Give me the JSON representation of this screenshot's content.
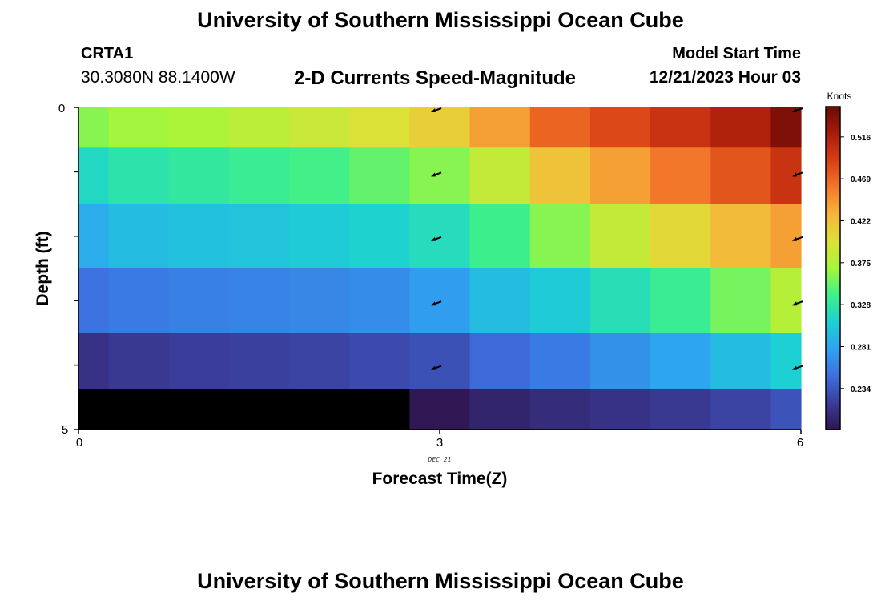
{
  "header": {
    "title": "University of Southern Mississippi Ocean Cube",
    "station": "CRTA1",
    "coords": "30.3080N  88.1400W",
    "subtitle": "2-D Currents Speed-Magnitude",
    "model_label": "Model Start Time",
    "model_time": "12/21/2023 Hour 03"
  },
  "footer": {
    "title": "University of Southern Mississippi Ocean Cube"
  },
  "colors": {
    "ramp": [
      "#2f1550",
      "#3a3d9a",
      "#3e6fe0",
      "#2ea3f0",
      "#1cd1d2",
      "#3ef08a",
      "#a6f63a",
      "#dde037",
      "#f6b63a",
      "#f3782a",
      "#d83f14",
      "#a81c0b",
      "#6a0a06"
    ]
  },
  "chart_data": {
    "type": "heatmap",
    "title": "2-D Currents Speed-Magnitude",
    "xlabel": "Forecast Time(Z)",
    "ylabel": "Depth (ft)",
    "xlim": [
      0,
      6
    ],
    "ylim": [
      0,
      5
    ],
    "x_ticks": [
      "0",
      "3",
      "6"
    ],
    "y_ticks": [
      "0",
      "5"
    ],
    "date_annotation": "DEC 21",
    "colorbar": {
      "label": "Knots",
      "ticks": [
        "0.516",
        "0.469",
        "0.422",
        "0.375",
        "0.328",
        "0.281",
        "0.234"
      ],
      "tick_values": [
        0.516,
        0.469,
        0.422,
        0.375,
        0.328,
        0.281,
        0.234
      ],
      "range": [
        0.188,
        0.55
      ]
    },
    "x": [
      0,
      0.5,
      1,
      1.5,
      2,
      2.5,
      3,
      3.5,
      4,
      4.5,
      5,
      5.5,
      6
    ],
    "depth_rows": [
      0.25,
      1,
      2,
      3,
      4,
      4.75
    ],
    "values": [
      [
        0.36,
        0.368,
        0.372,
        0.38,
        0.388,
        0.398,
        0.412,
        0.44,
        0.47,
        0.485,
        0.5,
        0.515,
        0.54
      ],
      [
        0.315,
        0.325,
        0.33,
        0.335,
        0.34,
        0.35,
        0.36,
        0.385,
        0.42,
        0.44,
        0.46,
        0.478,
        0.5
      ],
      [
        0.285,
        0.295,
        0.298,
        0.3,
        0.305,
        0.31,
        0.318,
        0.338,
        0.36,
        0.385,
        0.405,
        0.425,
        0.44
      ],
      [
        0.25,
        0.255,
        0.258,
        0.26,
        0.262,
        0.266,
        0.275,
        0.295,
        0.305,
        0.32,
        0.335,
        0.355,
        0.378
      ],
      [
        0.21,
        0.215,
        0.218,
        0.22,
        0.222,
        0.226,
        0.23,
        0.245,
        0.255,
        0.268,
        0.28,
        0.295,
        0.308
      ],
      [
        0.12,
        0.15,
        0.158,
        0.165,
        0.172,
        0.182,
        0.19,
        0.2,
        0.205,
        0.21,
        0.215,
        0.222,
        0.232
      ]
    ],
    "vectors": {
      "x": [
        3,
        6
      ],
      "depths": [
        0,
        1,
        2,
        3,
        4
      ],
      "direction": "southwest"
    }
  }
}
